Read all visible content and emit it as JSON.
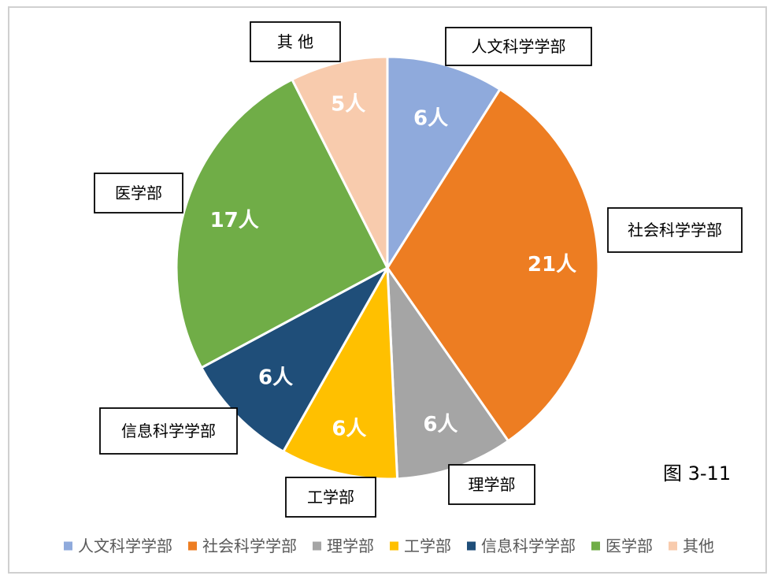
{
  "figure_label": "图 3-11",
  "chart_data": {
    "type": "pie",
    "categories": [
      "人文科学学部",
      "社会科学学部",
      "理学部",
      "工学部",
      "信息科学学部",
      "医学部",
      "其他"
    ],
    "values": [
      6,
      21,
      6,
      6,
      6,
      17,
      5
    ],
    "value_labels": [
      "6人",
      "21人",
      "6人",
      "6人",
      "6人",
      "17人",
      "5人"
    ],
    "callout_labels": [
      "人文科学学部",
      "社会科学学部",
      "理学部",
      "工学部",
      "信息科学学部",
      "医学部",
      "其 他"
    ],
    "colors": [
      "#8faadc",
      "#ed7d22",
      "#a5a5a5",
      "#ffc000",
      "#1f4e79",
      "#70ad47",
      "#f8cbad"
    ],
    "legend": {
      "position": "bottom",
      "entries": [
        "人文科学学部",
        "社会科学学部",
        "理学部",
        "工学部",
        "信息科学学部",
        "医学部",
        "其他"
      ]
    }
  }
}
